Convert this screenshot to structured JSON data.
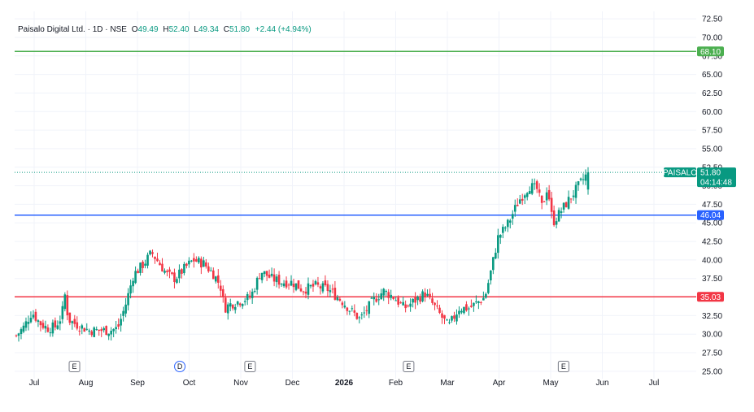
{
  "legend": {
    "symbol": "Paisalo Digital Ltd. · 1D · NSE",
    "open_label": "O",
    "open": "49.49",
    "high_label": "H",
    "high": "52.40",
    "low_label": "L",
    "low": "49.34",
    "close_label": "C",
    "close": "51.80",
    "change": "+2.44 (+4.94%)"
  },
  "colors": {
    "up": "#089981",
    "down": "#f23645",
    "grid": "#f0f3fa",
    "green_line": "#4caf50",
    "blue_line": "#2962ff",
    "red_line": "#f23645"
  },
  "chart_data": {
    "type": "candlestick",
    "ylim": [
      24,
      73.5
    ],
    "y_ticks": [
      "25.00",
      "27.50",
      "30.00",
      "32.50",
      "35.00",
      "37.50",
      "40.00",
      "42.50",
      "45.00",
      "47.50",
      "50.00",
      "52.50",
      "55.00",
      "57.50",
      "60.00",
      "62.50",
      "65.00",
      "67.50",
      "70.00",
      "72.50"
    ],
    "x_ticks": [
      "Jul",
      "Aug",
      "Sep",
      "Oct",
      "Nov",
      "Dec",
      "2026",
      "Feb",
      "Mar",
      "Apr",
      "May",
      "Jun",
      "Jul"
    ],
    "levels": [
      {
        "value": 68.1,
        "label": "68.10",
        "color": "#4caf50"
      },
      {
        "value": 46.04,
        "label": "46.04",
        "color": "#2962ff"
      },
      {
        "value": 35.03,
        "label": "35.03",
        "color": "#f23645"
      }
    ],
    "last_price": {
      "symbol": "PAISALO",
      "value": 51.8,
      "label": "51.80",
      "countdown": "04:14:48"
    },
    "events": [
      {
        "month_pos": 0.78,
        "code": "E",
        "type": "earnings"
      },
      {
        "month_pos": 2.82,
        "code": "D",
        "type": "dividend"
      },
      {
        "month_pos": 4.18,
        "code": "E",
        "type": "earnings"
      },
      {
        "month_pos": 7.25,
        "code": "E",
        "type": "earnings"
      },
      {
        "month_pos": 10.25,
        "code": "E",
        "type": "earnings"
      }
    ],
    "close_path": [
      [
        0.0,
        29.8
      ],
      [
        0.15,
        31.0
      ],
      [
        0.3,
        33.0
      ],
      [
        0.45,
        31.5
      ],
      [
        0.6,
        30.8
      ],
      [
        0.75,
        31.0
      ],
      [
        0.88,
        32.5
      ],
      [
        0.92,
        36.0
      ],
      [
        1.0,
        32.0
      ],
      [
        1.1,
        31.5
      ],
      [
        1.25,
        31.0
      ],
      [
        1.4,
        30.5
      ],
      [
        1.6,
        30.5
      ],
      [
        1.8,
        30.5
      ],
      [
        1.95,
        30.8
      ],
      [
        2.1,
        34.0
      ],
      [
        2.25,
        38.0
      ],
      [
        2.45,
        39.5
      ],
      [
        2.6,
        41.0
      ],
      [
        2.75,
        39.5
      ],
      [
        2.9,
        38.0
      ],
      [
        3.05,
        37.5
      ],
      [
        3.25,
        39.0
      ],
      [
        3.4,
        40.0
      ],
      [
        3.6,
        39.5
      ],
      [
        3.8,
        38.0
      ],
      [
        3.92,
        36.5
      ],
      [
        4.0,
        33.5
      ],
      [
        4.1,
        34.0
      ],
      [
        4.3,
        34.5
      ],
      [
        4.5,
        35.0
      ],
      [
        4.7,
        38.5
      ],
      [
        4.9,
        37.5
      ],
      [
        5.1,
        37.0
      ],
      [
        5.3,
        37.0
      ],
      [
        5.5,
        36.0
      ],
      [
        5.75,
        36.5
      ],
      [
        6.0,
        36.0
      ],
      [
        6.25,
        34.5
      ],
      [
        6.45,
        33.0
      ],
      [
        6.6,
        32.0
      ],
      [
        6.85,
        34.5
      ],
      [
        7.05,
        35.8
      ],
      [
        7.25,
        35.0
      ],
      [
        7.45,
        33.5
      ],
      [
        7.65,
        34.5
      ],
      [
        7.85,
        35.5
      ],
      [
        8.0,
        34.0
      ],
      [
        8.15,
        32.5
      ],
      [
        8.3,
        31.0
      ],
      [
        8.5,
        33.5
      ],
      [
        8.7,
        33.5
      ],
      [
        9.0,
        35.0
      ],
      [
        9.1,
        38.0
      ],
      [
        9.25,
        43.0
      ],
      [
        9.45,
        45.0
      ],
      [
        9.65,
        48.0
      ],
      [
        9.85,
        50.0
      ],
      [
        10.0,
        49.5
      ],
      [
        10.1,
        47.0
      ],
      [
        10.2,
        50.0
      ],
      [
        10.3,
        45.0
      ],
      [
        10.45,
        46.5
      ],
      [
        10.6,
        48.0
      ],
      [
        10.8,
        50.0
      ],
      [
        10.98,
        51.8
      ]
    ]
  }
}
